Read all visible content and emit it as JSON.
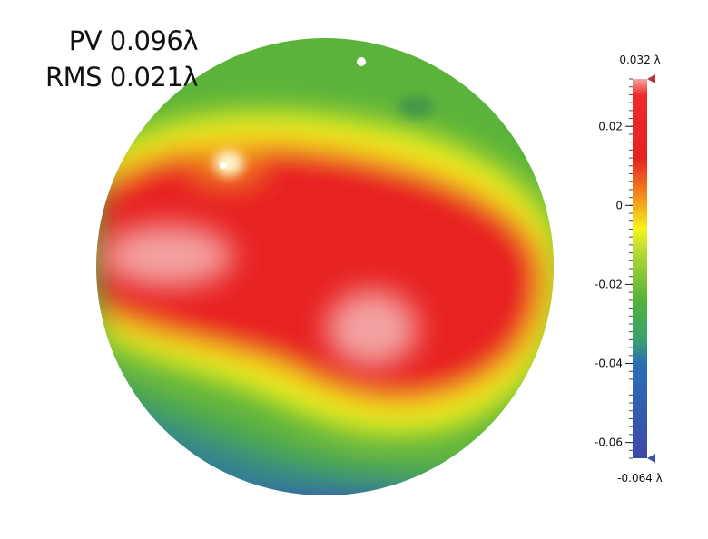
{
  "stats": {
    "pv": "PV 0.096λ",
    "rms": "RMS 0.021λ"
  },
  "chart_data": {
    "type": "heatmap",
    "title": "",
    "colorbar": {
      "max_label": "0.032 λ",
      "min_label": "-0.064 λ",
      "min": -0.064,
      "max": 0.032,
      "ticks": [
        {
          "value": 0.02,
          "label": "0.02"
        },
        {
          "value": 0,
          "label": "0"
        },
        {
          "value": -0.02,
          "label": "-0.02"
        },
        {
          "value": -0.04,
          "label": "-0.04"
        },
        {
          "value": -0.06,
          "label": "-0.06"
        }
      ],
      "colorscale": [
        {
          "value": 0.032,
          "color": "#f5a5a5"
        },
        {
          "value": 0.028,
          "color": "#ee2a2a"
        },
        {
          "value": 0.012,
          "color": "#e82020"
        },
        {
          "value": 0.004,
          "color": "#f07a1e"
        },
        {
          "value": -0.006,
          "color": "#f6f51a"
        },
        {
          "value": -0.012,
          "color": "#b5d832"
        },
        {
          "value": -0.024,
          "color": "#52b33a"
        },
        {
          "value": -0.034,
          "color": "#3aa070"
        },
        {
          "value": -0.04,
          "color": "#2a6fb5"
        },
        {
          "value": -0.064,
          "color": "#3f48a8"
        }
      ]
    },
    "colors": {
      "peak": "#f5b0b0",
      "high": "#e82222",
      "mid": "#f6f51a",
      "low": "#5bb33b",
      "valley": "#3a4fb0"
    }
  }
}
